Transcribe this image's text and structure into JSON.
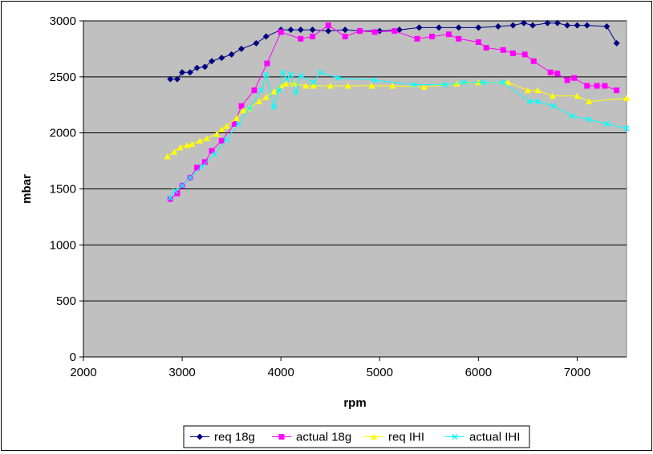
{
  "colors": {
    "plot_bg": "#C0C0C0",
    "grid": "#000000",
    "req_18g": "#000080",
    "actual_18g": "#FF00FF",
    "req_ihi": "#FFFF00",
    "actual_ihi": "#00FFFF"
  },
  "chart_data": {
    "type": "line",
    "xlabel": "rpm",
    "ylabel": "mbar",
    "xlim": [
      2000,
      7500
    ],
    "ylim": [
      0,
      3000
    ],
    "x_ticks": [
      2000,
      3000,
      4000,
      5000,
      6000,
      7000
    ],
    "y_ticks": [
      0,
      500,
      1000,
      1500,
      2000,
      2500,
      3000
    ],
    "grid": "horizontal",
    "legend_position": "bottom",
    "series": [
      {
        "name": "req 18g",
        "marker": "diamond",
        "color": "#000080",
        "points": [
          [
            2880,
            2480
          ],
          [
            2950,
            2480
          ],
          [
            3000,
            2540
          ],
          [
            3080,
            2540
          ],
          [
            3150,
            2580
          ],
          [
            3230,
            2590
          ],
          [
            3300,
            2640
          ],
          [
            3400,
            2670
          ],
          [
            3500,
            2700
          ],
          [
            3600,
            2750
          ],
          [
            3750,
            2800
          ],
          [
            3850,
            2860
          ],
          [
            4000,
            2920
          ],
          [
            4100,
            2920
          ],
          [
            4200,
            2920
          ],
          [
            4320,
            2920
          ],
          [
            4480,
            2910
          ],
          [
            4650,
            2920
          ],
          [
            4800,
            2910
          ],
          [
            5000,
            2910
          ],
          [
            5200,
            2920
          ],
          [
            5400,
            2940
          ],
          [
            5600,
            2940
          ],
          [
            5800,
            2940
          ],
          [
            6000,
            2940
          ],
          [
            6200,
            2950
          ],
          [
            6350,
            2960
          ],
          [
            6460,
            2980
          ],
          [
            6550,
            2960
          ],
          [
            6700,
            2980
          ],
          [
            6800,
            2980
          ],
          [
            6900,
            2960
          ],
          [
            7000,
            2960
          ],
          [
            7100,
            2960
          ],
          [
            7300,
            2950
          ],
          [
            7400,
            2800
          ]
        ]
      },
      {
        "name": "actual 18g",
        "marker": "square",
        "color": "#FF00FF",
        "points": [
          [
            2880,
            1410
          ],
          [
            2950,
            1460
          ],
          [
            3000,
            1530
          ],
          [
            3080,
            1600
          ],
          [
            3150,
            1690
          ],
          [
            3230,
            1740
          ],
          [
            3300,
            1840
          ],
          [
            3400,
            1930
          ],
          [
            3530,
            2080
          ],
          [
            3600,
            2240
          ],
          [
            3730,
            2380
          ],
          [
            3860,
            2620
          ],
          [
            4000,
            2900
          ],
          [
            4200,
            2840
          ],
          [
            4320,
            2860
          ],
          [
            4480,
            2960
          ],
          [
            4650,
            2860
          ],
          [
            4800,
            2910
          ],
          [
            4950,
            2900
          ],
          [
            5150,
            2910
          ],
          [
            5380,
            2840
          ],
          [
            5530,
            2860
          ],
          [
            5700,
            2880
          ],
          [
            5800,
            2840
          ],
          [
            6000,
            2810
          ],
          [
            6080,
            2760
          ],
          [
            6250,
            2740
          ],
          [
            6350,
            2710
          ],
          [
            6470,
            2700
          ],
          [
            6560,
            2640
          ],
          [
            6730,
            2540
          ],
          [
            6800,
            2530
          ],
          [
            6900,
            2470
          ],
          [
            6970,
            2490
          ],
          [
            7100,
            2420
          ],
          [
            7200,
            2420
          ],
          [
            7280,
            2420
          ],
          [
            7400,
            2380
          ]
        ]
      },
      {
        "name": "req IHI",
        "marker": "triangle",
        "color": "#FFFF00",
        "points": [
          [
            2850,
            1790
          ],
          [
            2920,
            1830
          ],
          [
            2980,
            1870
          ],
          [
            3050,
            1890
          ],
          [
            3100,
            1900
          ],
          [
            3180,
            1930
          ],
          [
            3250,
            1950
          ],
          [
            3350,
            1990
          ],
          [
            3400,
            2030
          ],
          [
            3450,
            2060
          ],
          [
            3550,
            2130
          ],
          [
            3620,
            2200
          ],
          [
            3680,
            2220
          ],
          [
            3780,
            2280
          ],
          [
            3850,
            2320
          ],
          [
            3930,
            2370
          ],
          [
            4000,
            2420
          ],
          [
            4050,
            2440
          ],
          [
            4130,
            2440
          ],
          [
            4250,
            2420
          ],
          [
            4330,
            2420
          ],
          [
            4500,
            2420
          ],
          [
            4680,
            2420
          ],
          [
            4920,
            2420
          ],
          [
            5130,
            2420
          ],
          [
            5450,
            2410
          ],
          [
            5780,
            2440
          ],
          [
            6000,
            2450
          ],
          [
            6300,
            2450
          ],
          [
            6500,
            2380
          ],
          [
            6600,
            2380
          ],
          [
            6750,
            2330
          ],
          [
            7000,
            2330
          ],
          [
            7120,
            2280
          ],
          [
            7500,
            2310
          ]
        ]
      },
      {
        "name": "actual IHI",
        "marker": "x",
        "color": "#00FFFF",
        "points": [
          [
            2880,
            1420
          ],
          [
            2930,
            1480
          ],
          [
            3000,
            1530
          ],
          [
            3080,
            1600
          ],
          [
            3200,
            1700
          ],
          [
            3330,
            1810
          ],
          [
            3450,
            1940
          ],
          [
            3570,
            2080
          ],
          [
            3680,
            2220
          ],
          [
            3800,
            2380
          ],
          [
            3850,
            2520
          ],
          [
            3930,
            2230
          ],
          [
            3980,
            2380
          ],
          [
            4020,
            2540
          ],
          [
            4060,
            2480
          ],
          [
            4100,
            2520
          ],
          [
            4150,
            2360
          ],
          [
            4200,
            2510
          ],
          [
            4330,
            2450
          ],
          [
            4400,
            2540
          ],
          [
            4580,
            2490
          ],
          [
            4950,
            2470
          ],
          [
            5350,
            2430
          ],
          [
            5660,
            2430
          ],
          [
            5850,
            2450
          ],
          [
            6050,
            2450
          ],
          [
            6250,
            2450
          ],
          [
            6520,
            2280
          ],
          [
            6600,
            2280
          ],
          [
            6760,
            2240
          ],
          [
            6950,
            2150
          ],
          [
            7120,
            2120
          ],
          [
            7300,
            2080
          ],
          [
            7500,
            2040
          ]
        ]
      }
    ]
  }
}
